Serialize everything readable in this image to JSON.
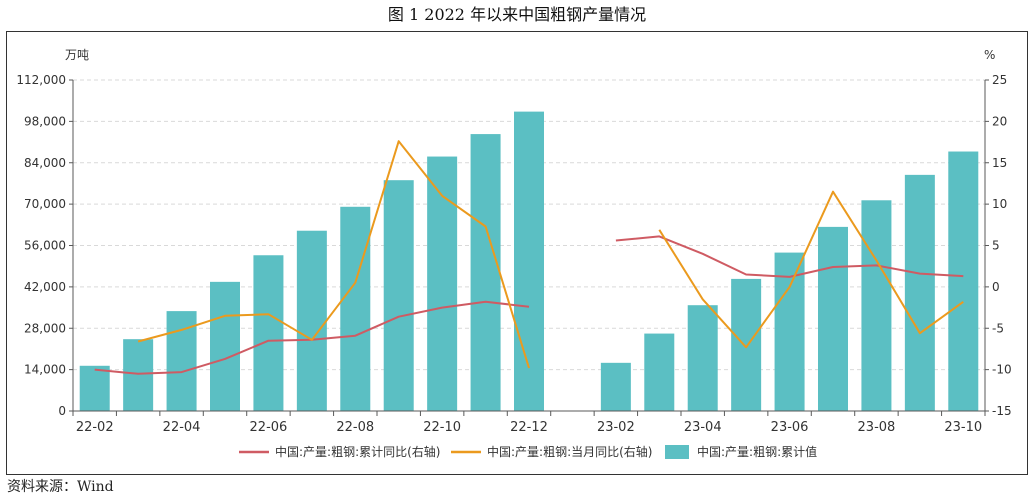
{
  "figure": {
    "title": "图 1   2022 年以来中国粗钢产量情况",
    "source": "资料来源：Wind"
  },
  "colors": {
    "bar": "#5bbfc3",
    "cumulative_yoy": "#cf5b63",
    "monthly_yoy": "#eb9a1e",
    "grid": "#d9d9d9",
    "axis": "#595959",
    "text": "#333333"
  },
  "chart_data": {
    "type": "bar",
    "ylabel_left": "万吨",
    "ylabel_right": "%",
    "ylim_left": [
      0,
      112000
    ],
    "ylim_right": [
      -15,
      25
    ],
    "yticks_left": [
      "0",
      "14,000",
      "28,000",
      "42,000",
      "56,000",
      "70,000",
      "84,000",
      "98,000",
      "112,000"
    ],
    "yticks_right": [
      "-15",
      "-10",
      "-5",
      "0",
      "5",
      "10",
      "15",
      "20",
      "25"
    ],
    "categories": [
      "22-02",
      "22-03",
      "22-04",
      "22-05",
      "22-06",
      "22-07",
      "22-08",
      "22-09",
      "22-10",
      "22-11",
      "22-12",
      "23-01",
      "23-02",
      "23-03",
      "23-04",
      "23-05",
      "23-06",
      "23-07",
      "23-08",
      "23-09",
      "23-10"
    ],
    "xtick_labels": [
      "22-02",
      "",
      "22-04",
      "",
      "22-06",
      "",
      "22-08",
      "",
      "22-10",
      "",
      "22-12",
      "",
      "23-02",
      "",
      "23-04",
      "",
      "23-06",
      "",
      "23-08",
      "",
      "23-10"
    ],
    "legend_position": "bottom",
    "grid": true,
    "series": [
      {
        "name": "中国:产量:粗钢:累计同比(右轴)",
        "type": "line",
        "axis": "right",
        "values": [
          -10.0,
          -10.5,
          -10.3,
          -8.7,
          -6.5,
          -6.4,
          -5.9,
          -3.6,
          -2.5,
          -1.8,
          -2.4,
          null,
          5.6,
          6.1,
          4.0,
          1.5,
          1.2,
          2.4,
          2.6,
          1.6,
          1.3
        ]
      },
      {
        "name": "中国:产量:粗钢:当月同比(右轴)",
        "type": "line",
        "axis": "right",
        "values": [
          null,
          -6.6,
          -5.2,
          -3.5,
          -3.3,
          -6.4,
          0.5,
          17.6,
          11.0,
          7.3,
          -9.8,
          null,
          null,
          6.9,
          -1.5,
          -7.3,
          0.0,
          11.5,
          3.2,
          -5.6,
          -1.8
        ]
      },
      {
        "name": "中国:产量:粗钢:累计值",
        "type": "bar",
        "axis": "left",
        "values": [
          15300,
          24300,
          33800,
          43700,
          52700,
          61000,
          69100,
          78100,
          86100,
          93700,
          101300,
          null,
          16300,
          26200,
          35800,
          44700,
          53600,
          62300,
          71300,
          79900,
          87800
        ]
      }
    ]
  }
}
